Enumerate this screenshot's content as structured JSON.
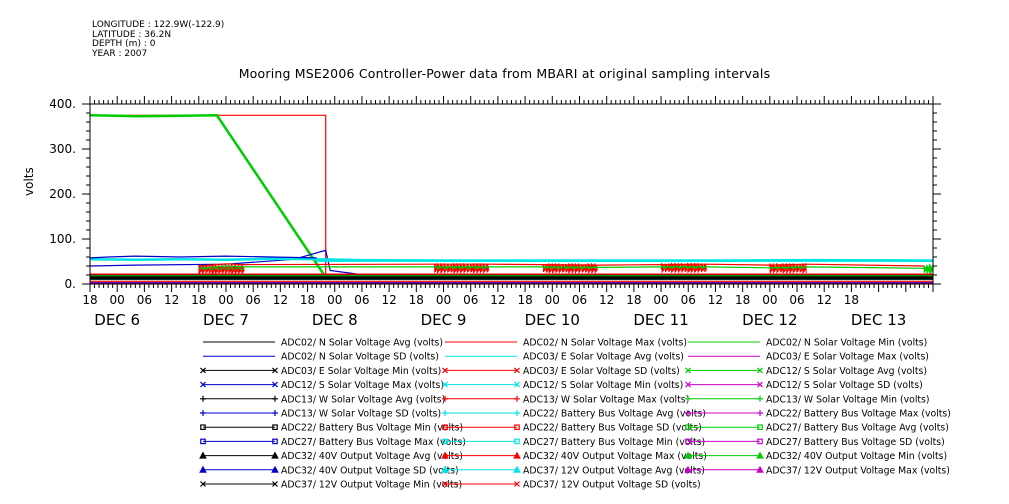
{
  "meta": {
    "longitude": "LONGITUDE : 122.9W(-122.9)",
    "latitude": "LATITUDE : 36.2N",
    "depth": "DEPTH (m) : 0",
    "year": "YEAR : 2007"
  },
  "chart_data": {
    "type": "line",
    "title": "Mooring MSE2006 Controller-Power data from MBARI at original sampling intervals",
    "xlabel": "",
    "ylabel": "volts",
    "xlim": [
      0,
      186
    ],
    "ylim": [
      0,
      400
    ],
    "y_ticks": [
      "0.",
      "100.",
      "200.",
      "300.",
      "400."
    ],
    "y_tick_values": [
      0,
      100,
      200,
      300,
      400
    ],
    "x_tick_labels": [
      "18",
      "00",
      "06",
      "12",
      "18",
      "00",
      "06",
      "12",
      "18",
      "00",
      "06",
      "12",
      "18",
      "00",
      "06",
      "12",
      "18",
      "00",
      "06",
      "12",
      "18",
      "00",
      "06",
      "12",
      "18",
      "00",
      "06",
      "12",
      "18"
    ],
    "x_day_labels": [
      {
        "label": "DEC  6",
        "hour": 6
      },
      {
        "label": "DEC  7",
        "hour": 30
      },
      {
        "label": "DEC  8",
        "hour": 54
      },
      {
        "label": "DEC  9",
        "hour": 78
      },
      {
        "label": "DEC 10",
        "hour": 102
      },
      {
        "label": "DEC 11",
        "hour": 126
      },
      {
        "label": "DEC 12",
        "hour": 150
      },
      {
        "label": "DEC 13",
        "hour": 174
      }
    ],
    "grid": false,
    "legend_position": "bottom",
    "series": [
      {
        "name": "ADC02/ N Solar Voltage Avg (volts)",
        "color": "#000000",
        "marker": "none",
        "values": [
          [
            0,
            15
          ],
          [
            10,
            15
          ],
          [
            25,
            15
          ],
          [
            40,
            15
          ],
          [
            52,
            14
          ],
          [
            60,
            14
          ],
          [
            70,
            14
          ],
          [
            90,
            14
          ],
          [
            110,
            14
          ],
          [
            130,
            14
          ],
          [
            150,
            14
          ],
          [
            170,
            14
          ],
          [
            186,
            14
          ]
        ]
      },
      {
        "name": "ADC02/ N Solar Voltage Max (volts)",
        "color": "#ff0000",
        "marker": "none",
        "values": [
          [
            0,
            375
          ],
          [
            10,
            375
          ],
          [
            20,
            375
          ],
          [
            28,
            375
          ],
          [
            38,
            375
          ],
          [
            52,
            375
          ],
          [
            52,
            12
          ],
          [
            60,
            12
          ],
          [
            186,
            12
          ]
        ]
      },
      {
        "name": "ADC02/ N Solar Voltage Min (volts)",
        "color": "#00cc00",
        "marker": "none",
        "values": [
          [
            0,
            375
          ],
          [
            10,
            373
          ],
          [
            20,
            374
          ],
          [
            28,
            375
          ],
          [
            52,
            15
          ],
          [
            62,
            12
          ],
          [
            186,
            12
          ]
        ]
      },
      {
        "name": "ADC02/ N Solar Voltage SD (volts)",
        "color": "#0000cc",
        "marker": "none",
        "values": [
          [
            0,
            40
          ],
          [
            10,
            42
          ],
          [
            30,
            44
          ],
          [
            45,
            55
          ],
          [
            52,
            75
          ],
          [
            53,
            30
          ],
          [
            62,
            18
          ],
          [
            186,
            18
          ]
        ]
      },
      {
        "name": "ADC03/ E Solar Voltage Avg (volts)",
        "color": "#00e5e5",
        "marker": "none",
        "values": [
          [
            0,
            55
          ],
          [
            10,
            54
          ],
          [
            20,
            55
          ],
          [
            30,
            54
          ],
          [
            40,
            56
          ],
          [
            50,
            55
          ],
          [
            60,
            53
          ],
          [
            80,
            52
          ],
          [
            100,
            52
          ],
          [
            120,
            52
          ],
          [
            140,
            52
          ],
          [
            160,
            53
          ],
          [
            186,
            52
          ]
        ]
      },
      {
        "name": "ADC03/ E Solar Voltage Max (volts)",
        "color": "#cc00cc",
        "marker": "none",
        "values": [
          [
            0,
            12
          ],
          [
            186,
            12
          ]
        ]
      },
      {
        "name": "ADC03/ E Solar Voltage Min (volts)",
        "color": "#000000",
        "marker": "x",
        "values": [
          [
            0,
            12
          ],
          [
            20,
            12
          ],
          [
            52,
            12
          ],
          [
            80,
            12
          ],
          [
            120,
            12
          ],
          [
            186,
            12
          ]
        ]
      },
      {
        "name": "ADC03/ E Solar Voltage SD (volts)",
        "color": "#ff0000",
        "marker": "x",
        "values": [
          [
            24,
            40
          ],
          [
            30,
            45
          ],
          [
            34,
            43
          ],
          [
            76,
            44
          ],
          [
            88,
            44
          ],
          [
            100,
            43
          ],
          [
            112,
            42
          ],
          [
            126,
            43
          ],
          [
            136,
            44
          ],
          [
            150,
            42
          ],
          [
            158,
            44
          ],
          [
            184,
            40
          ]
        ]
      },
      {
        "name": "ADC12/ S Solar Voltage Avg (volts)",
        "color": "#00cc00",
        "marker": "x",
        "values": [
          [
            24,
            35
          ],
          [
            30,
            40
          ],
          [
            34,
            38
          ],
          [
            76,
            38
          ],
          [
            88,
            38
          ],
          [
            100,
            38
          ],
          [
            112,
            37
          ],
          [
            126,
            38
          ],
          [
            136,
            38
          ],
          [
            150,
            36
          ],
          [
            158,
            38
          ],
          [
            184,
            35
          ]
        ]
      },
      {
        "name": "ADC12/ S Solar Voltage Max (volts)",
        "color": "#0000cc",
        "marker": "x",
        "values": [
          [
            0,
            58
          ],
          [
            4,
            60
          ],
          [
            10,
            62
          ],
          [
            20,
            60
          ],
          [
            30,
            62
          ],
          [
            40,
            60
          ],
          [
            50,
            58
          ]
        ]
      },
      {
        "name": "ADC12/ S Solar Voltage Min (volts)",
        "color": "#00e5e5",
        "marker": "x",
        "values": [
          [
            50,
            52
          ],
          [
            186,
            52
          ]
        ]
      },
      {
        "name": "ADC12/ S Solar Voltage SD (volts)",
        "color": "#cc00cc",
        "marker": "x",
        "values": [
          [
            0,
            3
          ],
          [
            186,
            3
          ]
        ]
      },
      {
        "name": "ADC13/ W Solar Voltage Avg (volts)",
        "color": "#000000",
        "marker": "plus",
        "values": [
          [
            0,
            16
          ],
          [
            186,
            16
          ]
        ]
      },
      {
        "name": "ADC13/ W Solar Voltage Max (volts)",
        "color": "#ff0000",
        "marker": "plus",
        "values": [
          [
            0,
            6
          ],
          [
            186,
            6
          ]
        ]
      },
      {
        "name": "ADC13/ W Solar Voltage Min (volts)",
        "color": "#00cc00",
        "marker": "plus",
        "values": [
          [
            0,
            10
          ],
          [
            186,
            10
          ]
        ]
      },
      {
        "name": "ADC13/ W Solar Voltage SD (volts)",
        "color": "#0000cc",
        "marker": "plus",
        "values": [
          [
            0,
            2
          ],
          [
            186,
            2
          ]
        ]
      },
      {
        "name": "ADC22/ Battery Bus Voltage Avg (volts)",
        "color": "#00e5e5",
        "marker": "plus",
        "values": [
          [
            0,
            13
          ],
          [
            186,
            13
          ]
        ]
      },
      {
        "name": "ADC22/ Battery Bus Voltage Max (volts)",
        "color": "#cc00cc",
        "marker": "plus",
        "values": [
          [
            0,
            14
          ],
          [
            186,
            14
          ]
        ]
      },
      {
        "name": "ADC22/ Battery Bus Voltage Min (volts)",
        "color": "#000000",
        "marker": "square",
        "values": [
          [
            0,
            12
          ],
          [
            186,
            12
          ]
        ]
      },
      {
        "name": "ADC22/ Battery Bus Voltage SD (volts)",
        "color": "#ff0000",
        "marker": "square",
        "values": [
          [
            0,
            1
          ],
          [
            186,
            1
          ]
        ]
      },
      {
        "name": "ADC27/ Battery Bus Voltage Avg (volts)",
        "color": "#00cc00",
        "marker": "square",
        "values": [
          [
            0,
            13
          ],
          [
            186,
            13
          ]
        ]
      },
      {
        "name": "ADC27/ Battery Bus Voltage Max (volts)",
        "color": "#0000cc",
        "marker": "square",
        "values": [
          [
            0,
            14
          ],
          [
            186,
            14
          ]
        ]
      },
      {
        "name": "ADC27/ Battery Bus Voltage Min (volts)",
        "color": "#00e5e5",
        "marker": "square",
        "values": [
          [
            0,
            12
          ],
          [
            186,
            12
          ]
        ]
      },
      {
        "name": "ADC27/ Battery Bus Voltage SD (volts)",
        "color": "#cc00cc",
        "marker": "square",
        "values": [
          [
            0,
            1
          ],
          [
            186,
            1
          ]
        ]
      },
      {
        "name": "ADC32/ 40V Output Voltage Avg (volts)",
        "color": "#000000",
        "marker": "triangle",
        "values": [
          [
            0,
            20
          ],
          [
            186,
            20
          ]
        ]
      },
      {
        "name": "ADC32/ 40V Output Voltage Max (volts)",
        "color": "#ff0000",
        "marker": "triangle",
        "values": [
          [
            0,
            22
          ],
          [
            186,
            22
          ]
        ]
      },
      {
        "name": "ADC32/ 40V Output Voltage Min (volts)",
        "color": "#00cc00",
        "marker": "triangle",
        "values": [
          [
            0,
            18
          ],
          [
            186,
            18
          ]
        ]
      },
      {
        "name": "ADC32/ 40V Output Voltage SD (volts)",
        "color": "#0000cc",
        "marker": "triangle",
        "values": [
          [
            0,
            1
          ],
          [
            186,
            1
          ]
        ]
      },
      {
        "name": "ADC37/ 12V Output Voltage Avg (volts)",
        "color": "#00e5e5",
        "marker": "triangle",
        "values": [
          [
            0,
            12
          ],
          [
            186,
            12
          ]
        ]
      },
      {
        "name": "ADC37/ 12V Output Voltage Max (volts)",
        "color": "#cc00cc",
        "marker": "triangle",
        "values": [
          [
            0,
            13
          ],
          [
            186,
            13
          ]
        ]
      },
      {
        "name": "ADC37/ 12V Output Voltage Min (volts)",
        "color": "#000000",
        "marker": "x",
        "values": [
          [
            0,
            11
          ],
          [
            186,
            11
          ]
        ]
      },
      {
        "name": "ADC37/ 12V Output Voltage SD (volts)",
        "color": "#ff0000",
        "marker": "x",
        "values": [
          [
            0,
            0.5
          ],
          [
            186,
            0.5
          ]
        ]
      }
    ],
    "daytime_blocks": [
      {
        "start": 24,
        "end": 34,
        "avg": 40,
        "color": "#ff0000"
      },
      {
        "start": 76,
        "end": 88,
        "avg": 42,
        "color": "#ff0000"
      },
      {
        "start": 100,
        "end": 112,
        "avg": 42,
        "color": "#ff0000"
      },
      {
        "start": 126,
        "end": 136,
        "avg": 43,
        "color": "#ff0000"
      },
      {
        "start": 150,
        "end": 158,
        "avg": 42,
        "color": "#ff0000"
      },
      {
        "start": 184,
        "end": 186,
        "avg": 40,
        "color": "#00cc00"
      }
    ]
  }
}
